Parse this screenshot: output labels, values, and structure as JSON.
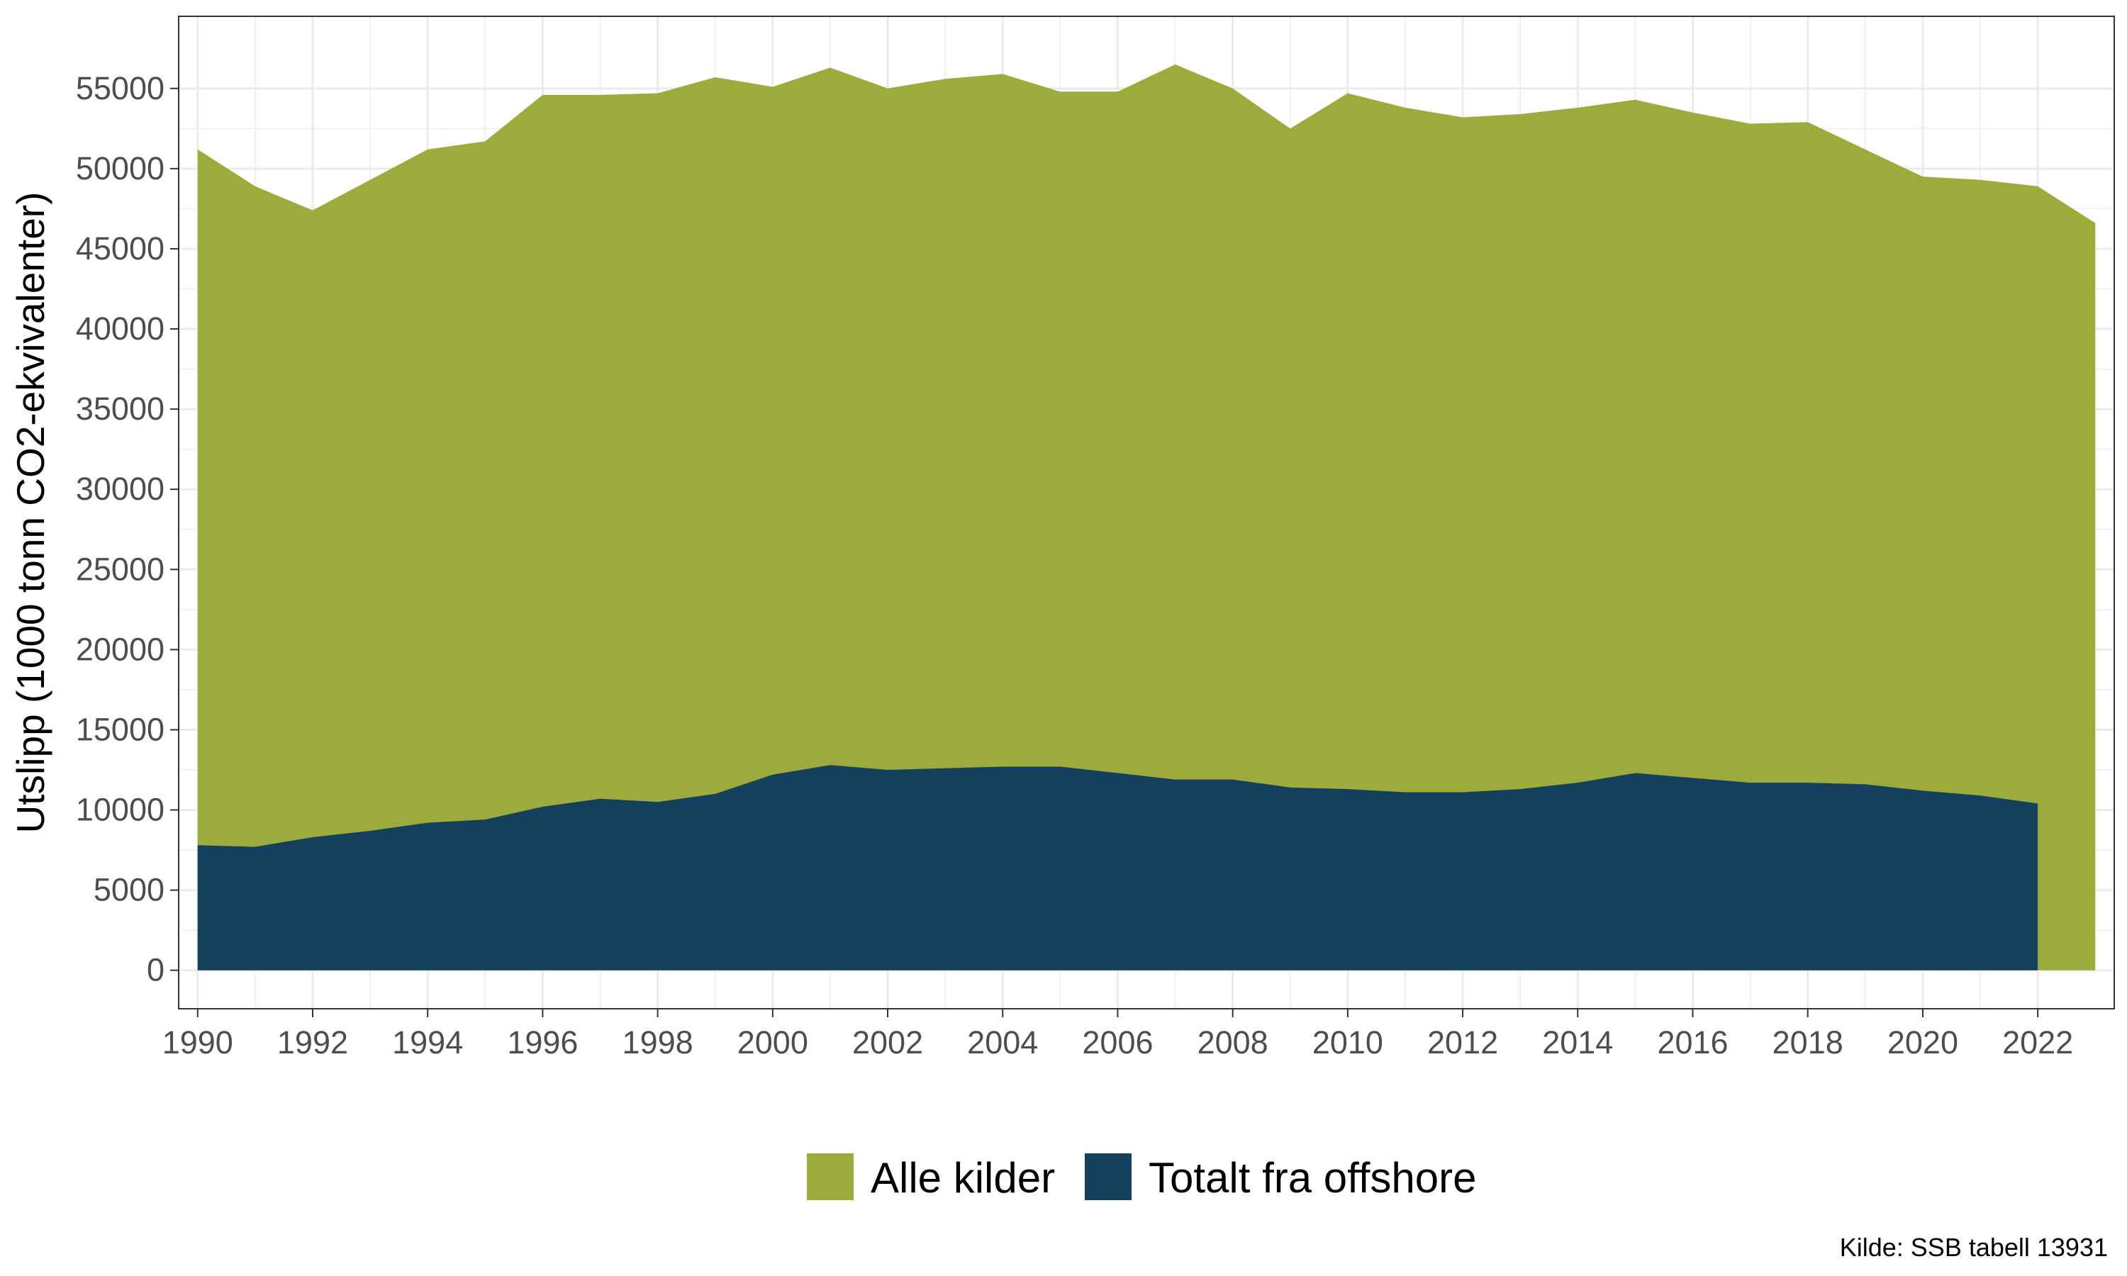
{
  "chart_data": {
    "type": "area",
    "ylabel": "Utslipp (1000 tonn CO2-ekvivalenter)",
    "xlabel": "",
    "caption": "Kilde: SSB tabell 13931",
    "xlim": [
      1989.67,
      2023.33
    ],
    "ylim": [
      -2400,
      59500
    ],
    "x_ticks": [
      1990,
      1992,
      1994,
      1996,
      1998,
      2000,
      2002,
      2004,
      2006,
      2008,
      2010,
      2012,
      2014,
      2016,
      2018,
      2020,
      2022
    ],
    "y_ticks": [
      0,
      5000,
      10000,
      15000,
      20000,
      25000,
      30000,
      35000,
      40000,
      45000,
      50000,
      55000
    ],
    "grid": true,
    "legend_position": "bottom",
    "series": [
      {
        "name": "Alle kilder",
        "color": "#9daa3c",
        "x": [
          1990,
          1991,
          1992,
          1993,
          1994,
          1995,
          1996,
          1997,
          1998,
          1999,
          2000,
          2001,
          2002,
          2003,
          2004,
          2005,
          2006,
          2007,
          2008,
          2009,
          2010,
          2011,
          2012,
          2013,
          2014,
          2015,
          2016,
          2017,
          2018,
          2019,
          2020,
          2021,
          2022,
          2023
        ],
        "values": [
          51200,
          48900,
          47400,
          49300,
          51200,
          51700,
          54600,
          54600,
          54700,
          55700,
          55100,
          56300,
          55000,
          55600,
          55900,
          54800,
          54800,
          56500,
          55000,
          52500,
          54700,
          53800,
          53200,
          53400,
          53800,
          54300,
          53500,
          52800,
          52900,
          51200,
          49500,
          49300,
          48900,
          46600
        ]
      },
      {
        "name": "Totalt fra offshore",
        "color": "#14405e",
        "x": [
          1990,
          1991,
          1992,
          1993,
          1994,
          1995,
          1996,
          1997,
          1998,
          1999,
          2000,
          2001,
          2002,
          2003,
          2004,
          2005,
          2006,
          2007,
          2008,
          2009,
          2010,
          2011,
          2012,
          2013,
          2014,
          2015,
          2016,
          2017,
          2018,
          2019,
          2020,
          2021,
          2022
        ],
        "values": [
          7800,
          7700,
          8300,
          8700,
          9200,
          9400,
          10200,
          10700,
          10500,
          11000,
          12200,
          12800,
          12500,
          12600,
          12700,
          12700,
          12300,
          11900,
          11900,
          11400,
          11300,
          11100,
          11100,
          11300,
          11700,
          12300,
          12000,
          11700,
          11700,
          11600,
          11200,
          10900,
          10400
        ]
      }
    ]
  }
}
